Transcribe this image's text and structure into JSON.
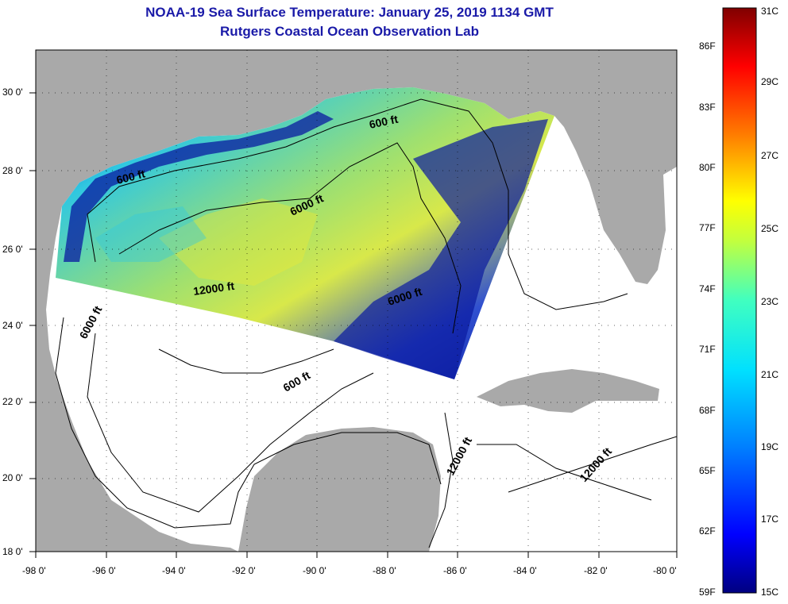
{
  "header": {
    "title": "NOAA-19 Sea Surface Temperature:  January 25, 2019 1134 GMT",
    "subtitle": "Rutgers Coastal Ocean Observation Lab"
  },
  "map": {
    "lon_labels": [
      "-98 0'",
      "-96 0'",
      "-94 0'",
      "-92 0'",
      "-90 0'",
      "-88 0'",
      "-86 0'",
      "-84 0'",
      "-82 0'",
      "-80 0'"
    ],
    "lat_labels": [
      "30 0'",
      "28 0'",
      "26 0'",
      "24 0'",
      "22 0'",
      "20 0'",
      "18 0'"
    ],
    "contour_labels": [
      "600 ft",
      "600 ft",
      "6000 ft",
      "6000 ft",
      "6000 ft",
      "12000 ft",
      "600 ft",
      "12000 ft",
      "12000 ft"
    ],
    "colors": {
      "land": "#a9a9a9",
      "water_nodata": "#ffffff",
      "sst_cold": "#0a1aa0",
      "sst_mid": "#30c8e0",
      "sst_warm": "#e8e838"
    }
  },
  "colorbar": {
    "f_labels": [
      "86F",
      "83F",
      "80F",
      "77F",
      "74F",
      "71F",
      "68F",
      "65F",
      "62F",
      "59F"
    ],
    "c_labels": [
      "31C",
      "29C",
      "27C",
      "25C",
      "23C",
      "21C",
      "19C",
      "17C",
      "15C"
    ],
    "colors": [
      "#000080",
      "#0000ff",
      "#0080ff",
      "#00e0ff",
      "#40ffc0",
      "#c0ff40",
      "#ffff00",
      "#ff8000",
      "#ff0000",
      "#800000"
    ]
  }
}
